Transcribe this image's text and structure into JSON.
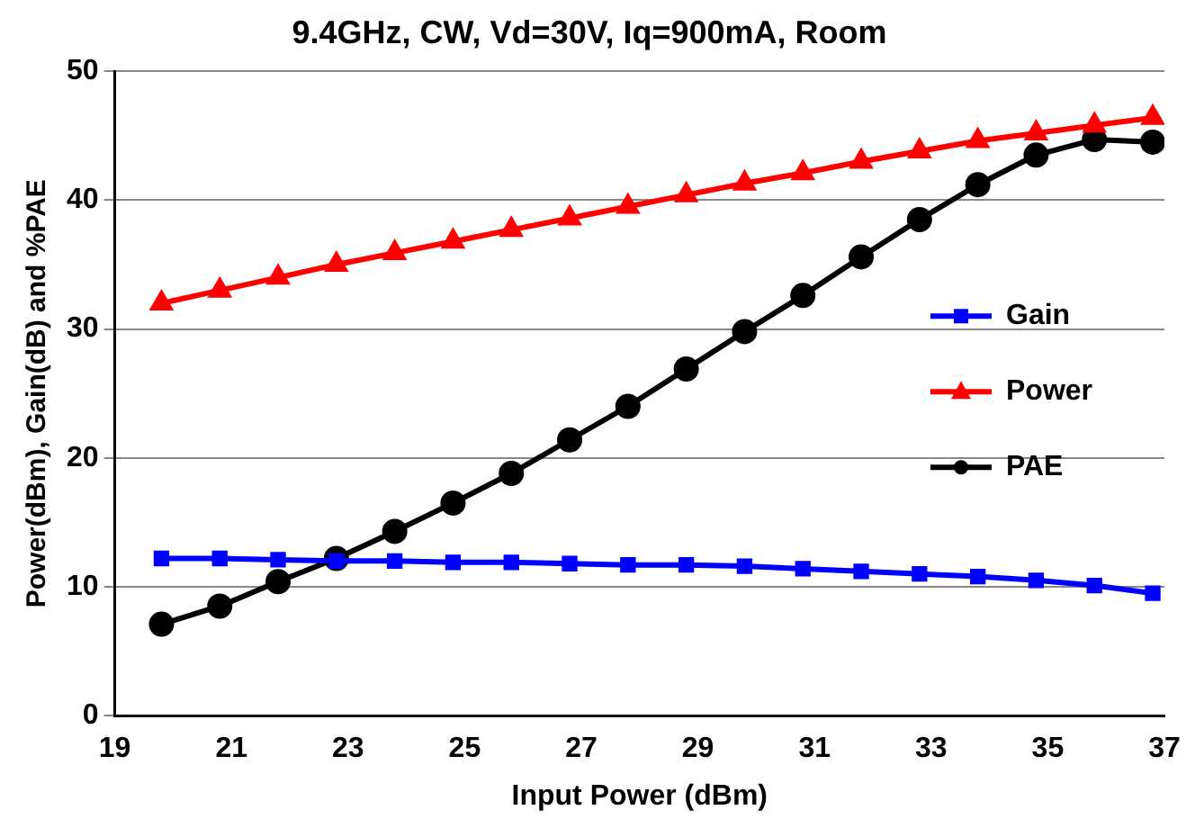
{
  "chart_data": {
    "type": "line",
    "title": "9.4GHz, CW, Vd=30V, Iq=900mA, Room",
    "xlabel": "Input Power (dBm)",
    "ylabel": "Power(dBm), Gain(dB) and %PAE",
    "x": [
      19.8,
      20.8,
      21.8,
      22.8,
      23.8,
      24.8,
      25.8,
      26.8,
      27.8,
      28.8,
      29.8,
      30.8,
      31.8,
      32.8,
      33.8,
      34.8,
      35.8,
      36.8
    ],
    "series": [
      {
        "name": "Gain",
        "color": "#0000ff",
        "marker": "square",
        "values": [
          12.2,
          12.2,
          12.1,
          12.0,
          12.0,
          11.9,
          11.9,
          11.8,
          11.7,
          11.7,
          11.6,
          11.4,
          11.2,
          11.0,
          10.8,
          10.5,
          10.1,
          9.5
        ]
      },
      {
        "name": "Power",
        "color": "#ff0000",
        "marker": "triangle",
        "values": [
          32.0,
          33.0,
          34.0,
          35.0,
          35.9,
          36.8,
          37.7,
          38.6,
          39.5,
          40.4,
          41.3,
          42.1,
          43.0,
          43.8,
          44.6,
          45.2,
          45.8,
          46.4
        ]
      },
      {
        "name": "PAE",
        "color": "#000000",
        "marker": "circle",
        "values": [
          7.1,
          8.5,
          10.4,
          12.2,
          14.3,
          16.5,
          18.8,
          21.4,
          24.0,
          26.9,
          29.8,
          32.6,
          35.6,
          38.5,
          41.2,
          43.5,
          44.7,
          44.5
        ]
      }
    ],
    "xlim": [
      19,
      37
    ],
    "xticks": [
      19,
      21,
      23,
      25,
      27,
      29,
      31,
      33,
      35,
      37
    ],
    "ylim": [
      0,
      50
    ],
    "yticks": [
      0,
      10,
      20,
      30,
      40,
      50
    ],
    "grid": "y",
    "legend": "right",
    "line_style": "solid"
  }
}
